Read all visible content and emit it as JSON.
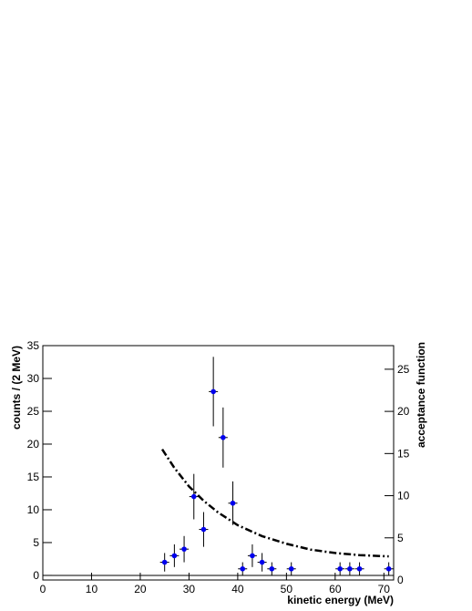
{
  "chart_data": {
    "type": "scatter",
    "x_label": "kinetic energy (MeV)",
    "y_label": "counts / (2 MeV)",
    "y2_label": "acceptance function",
    "xlim": [
      0,
      72
    ],
    "xticks": [
      0,
      10,
      20,
      30,
      40,
      50,
      60,
      70
    ],
    "ylim": [
      -0.7,
      35
    ],
    "yticks": [
      0,
      5,
      10,
      15,
      20,
      25,
      30,
      35
    ],
    "y2lim": [
      0,
      27.8
    ],
    "y2ticks": [
      0,
      5,
      10,
      15,
      20,
      25
    ],
    "series": [
      {
        "type": "scatter",
        "color": "#0000ee",
        "x": [
          25,
          27,
          29,
          31,
          33,
          35,
          37,
          39,
          41,
          43,
          45,
          47,
          51,
          61,
          63,
          65,
          71
        ],
        "values": [
          2,
          3,
          4,
          12,
          7,
          28,
          21,
          11,
          1,
          3,
          2,
          1,
          1,
          1,
          1,
          1,
          1
        ],
        "errors": [
          1.41,
          1.73,
          2,
          3.46,
          2.65,
          5.29,
          4.58,
          3.32,
          1,
          1.73,
          1.41,
          1,
          1,
          1,
          1,
          1,
          1
        ]
      },
      {
        "type": "line",
        "axis": "y2",
        "color": "#000000",
        "x": [
          24.5,
          27,
          30,
          33,
          36,
          40,
          45,
          50,
          55,
          60,
          65,
          71
        ],
        "values": [
          15.5,
          13.3,
          11.1,
          9.4,
          8.0,
          6.5,
          5.2,
          4.3,
          3.6,
          3.2,
          2.95,
          2.8
        ]
      }
    ]
  }
}
